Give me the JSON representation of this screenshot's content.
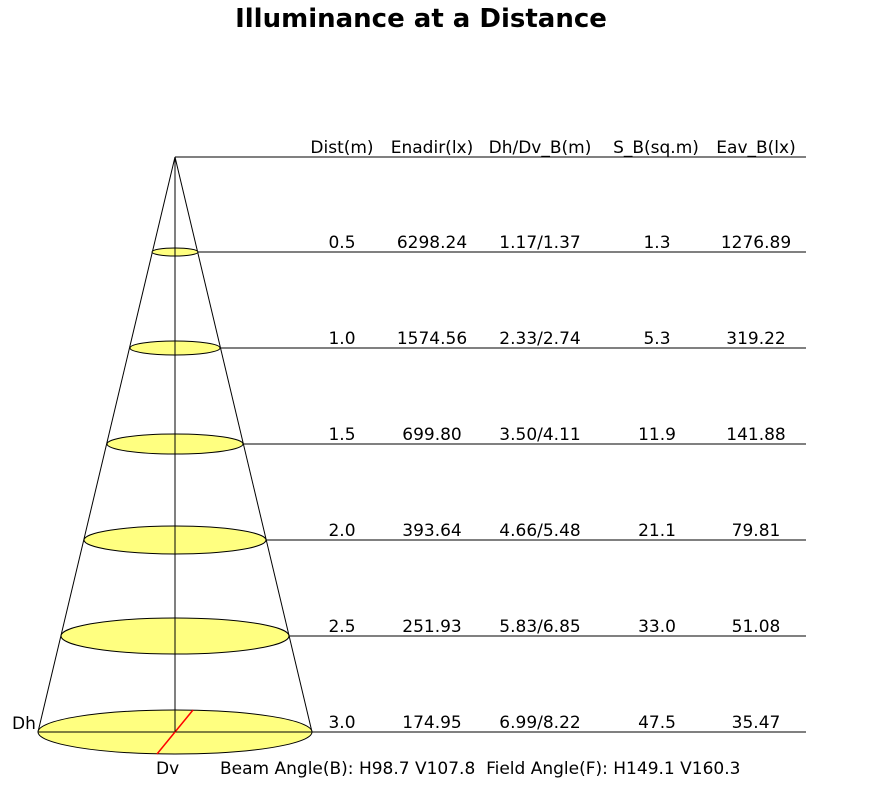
{
  "title": "Illuminance at a Distance",
  "headers": [
    "Dist(m)",
    "Enadir(lx)",
    "Dh/Dv_B(m)",
    "S_B(sq.m)",
    "Eav_B(lx)"
  ],
  "rows": [
    {
      "dist": "0.5",
      "enadir": "6298.24",
      "dhdv": "1.17/1.37",
      "sb": "1.3",
      "eav": "1276.89"
    },
    {
      "dist": "1.0",
      "enadir": "1574.56",
      "dhdv": "2.33/2.74",
      "sb": "5.3",
      "eav": "319.22"
    },
    {
      "dist": "1.5",
      "enadir": "699.80",
      "dhdv": "3.50/4.11",
      "sb": "11.9",
      "eav": "141.88"
    },
    {
      "dist": "2.0",
      "enadir": "393.64",
      "dhdv": "4.66/5.48",
      "sb": "21.1",
      "eav": "79.81"
    },
    {
      "dist": "2.5",
      "enadir": "251.93",
      "dhdv": "5.83/6.85",
      "sb": "33.0",
      "eav": "51.08"
    },
    {
      "dist": "3.0",
      "enadir": "174.95",
      "dhdv": "6.99/8.22",
      "sb": "47.5",
      "eav": "35.47"
    }
  ],
  "labels": {
    "dh": "Dh",
    "dv": "Dv"
  },
  "footer": "Beam Angle(B): H98.7 V107.8  Field Angle(F): H149.1 V160.3",
  "colors": {
    "ellipse_fill": "#ffff80",
    "line": "#000000",
    "dv_line": "#ff0000"
  }
}
